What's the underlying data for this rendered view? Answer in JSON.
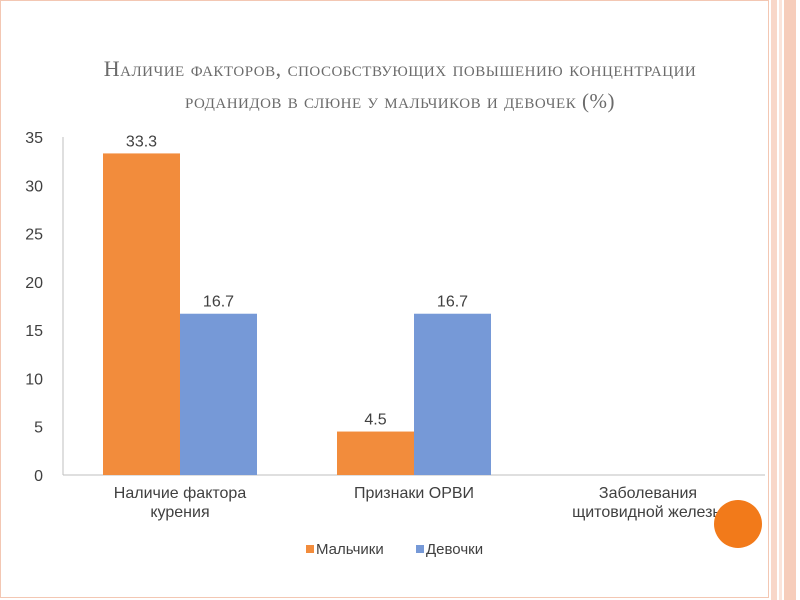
{
  "title_line1": "Наличие факторов, способствующих повышению концентрации",
  "title_line2": "роданидов в слюне у мальчиков и девочек (%)",
  "chart_data": {
    "type": "bar",
    "categories": [
      "Наличие фактора курения",
      "Признаки ОРВИ",
      "Заболевания щитовидной железы"
    ],
    "category_lines": [
      [
        "Наличие фактора",
        "курения"
      ],
      [
        "Признаки ОРВИ"
      ],
      [
        "Заболевания",
        "щитовидной железы"
      ]
    ],
    "series": [
      {
        "name": "Мальчики",
        "color": "#f28c3c",
        "values": [
          33.3,
          4.5,
          null
        ]
      },
      {
        "name": "Девочки",
        "color": "#7699d7",
        "values": [
          16.7,
          16.7,
          null
        ]
      }
    ],
    "data_labels": [
      [
        "33.3",
        "4.5",
        ""
      ],
      [
        "16.7",
        "16.7",
        ""
      ]
    ],
    "yticks": [
      0,
      5,
      10,
      15,
      20,
      25,
      30,
      35
    ],
    "ylim": [
      0,
      35
    ],
    "grid": false,
    "legend_position": "bottom"
  },
  "colors": {
    "accent_circle": "#f27a1a",
    "axis": "#bfbfbf",
    "text": "#404040"
  }
}
